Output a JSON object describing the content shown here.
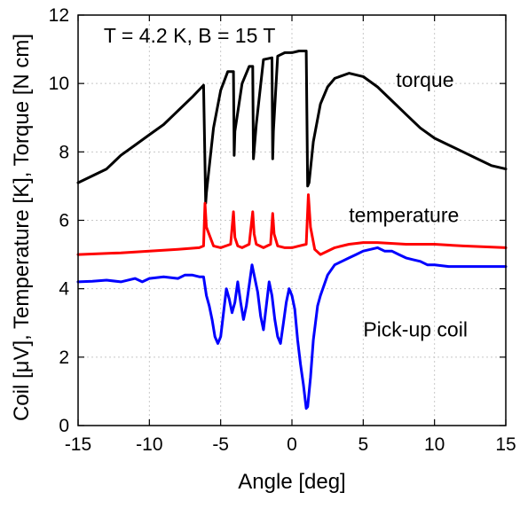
{
  "chart_data": {
    "type": "line",
    "title": "",
    "xlabel": "Angle [deg]",
    "ylabel": "Coil [μV], Temperature [K],  Torque [N cm]",
    "xlim": [
      -15,
      15
    ],
    "ylim": [
      0,
      12
    ],
    "xticks": [
      -15,
      -10,
      -5,
      0,
      5,
      10,
      15
    ],
    "yticks": [
      0,
      2,
      4,
      6,
      8,
      10,
      12
    ],
    "grid": true,
    "annotations": [
      {
        "text": "T = 4.2 K, B = 15 T",
        "x": -13.2,
        "y": 11.2
      },
      {
        "text": "torque",
        "x": 7.3,
        "y": 9.9
      },
      {
        "text": "temperature",
        "x": 4.0,
        "y": 5.95
      },
      {
        "text": "Pick-up coil",
        "x": 5.0,
        "y": 2.6
      }
    ],
    "series": [
      {
        "name": "torque",
        "color": "#000000",
        "x": [
          -15,
          -13,
          -12,
          -11,
          -10,
          -9,
          -8,
          -7,
          -6.2,
          -6.05,
          -6.0,
          -5.5,
          -5.0,
          -4.5,
          -4.1,
          -4.05,
          -4.0,
          -3.5,
          -3.0,
          -2.75,
          -2.7,
          -2.5,
          -2.0,
          -1.4,
          -1.35,
          -1.3,
          -1.0,
          -0.5,
          0.0,
          0.5,
          1.0,
          1.1,
          1.2,
          1.5,
          2.0,
          2.5,
          3.0,
          4.0,
          5.0,
          6.0,
          7.0,
          8.0,
          9.0,
          10.0,
          11.0,
          12.0,
          13.0,
          14.0,
          15.0
        ],
        "y": [
          7.1,
          7.5,
          7.9,
          8.2,
          8.5,
          8.8,
          9.2,
          9.6,
          9.95,
          6.5,
          6.8,
          8.7,
          9.8,
          10.35,
          10.35,
          7.9,
          8.6,
          10.0,
          10.5,
          10.5,
          7.8,
          8.8,
          10.7,
          10.75,
          7.8,
          8.6,
          10.8,
          10.9,
          10.9,
          10.95,
          10.95,
          7.0,
          7.1,
          8.3,
          9.4,
          9.9,
          10.15,
          10.3,
          10.2,
          9.9,
          9.5,
          9.1,
          8.7,
          8.4,
          8.2,
          8.0,
          7.8,
          7.6,
          7.5
        ]
      },
      {
        "name": "temperature",
        "color": "#ff0000",
        "x": [
          -15,
          -12,
          -10,
          -8,
          -6.5,
          -6.2,
          -6.1,
          -6.0,
          -5.5,
          -5.0,
          -4.3,
          -4.1,
          -4.0,
          -3.8,
          -3.5,
          -3.0,
          -2.75,
          -2.65,
          -2.5,
          -2.0,
          -1.5,
          -1.35,
          -1.25,
          -1.0,
          -0.5,
          0.0,
          0.5,
          1.0,
          1.15,
          1.3,
          1.6,
          2.0,
          3.0,
          4.0,
          5.0,
          6.0,
          8.0,
          10.0,
          12.0,
          15.0
        ],
        "y": [
          5.0,
          5.05,
          5.1,
          5.15,
          5.2,
          5.25,
          6.5,
          5.8,
          5.25,
          5.2,
          5.3,
          6.25,
          5.5,
          5.25,
          5.2,
          5.3,
          6.25,
          5.6,
          5.3,
          5.2,
          5.3,
          6.2,
          5.6,
          5.25,
          5.2,
          5.2,
          5.25,
          5.3,
          6.75,
          5.8,
          5.15,
          5.0,
          5.2,
          5.3,
          5.35,
          5.35,
          5.3,
          5.3,
          5.25,
          5.2
        ]
      },
      {
        "name": "Pick-up coil",
        "color": "#0000ff",
        "x": [
          -15,
          -14,
          -13,
          -12,
          -11,
          -10.5,
          -10,
          -9,
          -8,
          -7.5,
          -7,
          -6.5,
          -6.2,
          -6.0,
          -5.8,
          -5.6,
          -5.4,
          -5.2,
          -5.0,
          -4.8,
          -4.6,
          -4.4,
          -4.2,
          -4.0,
          -3.8,
          -3.6,
          -3.4,
          -3.2,
          -3.0,
          -2.8,
          -2.6,
          -2.4,
          -2.2,
          -2.0,
          -1.8,
          -1.6,
          -1.4,
          -1.2,
          -1.0,
          -0.8,
          -0.6,
          -0.4,
          -0.2,
          0.0,
          0.2,
          0.4,
          0.6,
          0.8,
          1.0,
          1.1,
          1.3,
          1.5,
          1.8,
          2.0,
          2.5,
          3.0,
          3.5,
          4.0,
          4.5,
          5.0,
          5.5,
          6.0,
          6.5,
          7.0,
          7.5,
          8.0,
          8.5,
          9.0,
          9.5,
          10.0,
          11.0,
          12.0,
          13.0,
          14.0,
          15.0
        ],
        "y": [
          4.2,
          4.22,
          4.25,
          4.2,
          4.3,
          4.2,
          4.3,
          4.35,
          4.3,
          4.4,
          4.4,
          4.35,
          4.35,
          3.8,
          3.5,
          3.1,
          2.6,
          2.4,
          2.6,
          3.3,
          4.0,
          3.7,
          3.3,
          3.6,
          4.2,
          3.6,
          3.1,
          3.5,
          4.1,
          4.7,
          4.3,
          3.9,
          3.2,
          2.8,
          3.5,
          4.2,
          3.8,
          3.1,
          2.6,
          2.4,
          3.0,
          3.6,
          4.0,
          3.8,
          3.4,
          2.5,
          1.8,
          1.2,
          0.5,
          0.55,
          1.4,
          2.5,
          3.5,
          3.8,
          4.4,
          4.7,
          4.8,
          4.9,
          5.0,
          5.1,
          5.15,
          5.2,
          5.1,
          5.1,
          5.0,
          4.9,
          4.85,
          4.8,
          4.7,
          4.7,
          4.65,
          4.65,
          4.65,
          4.65,
          4.65
        ]
      }
    ]
  }
}
